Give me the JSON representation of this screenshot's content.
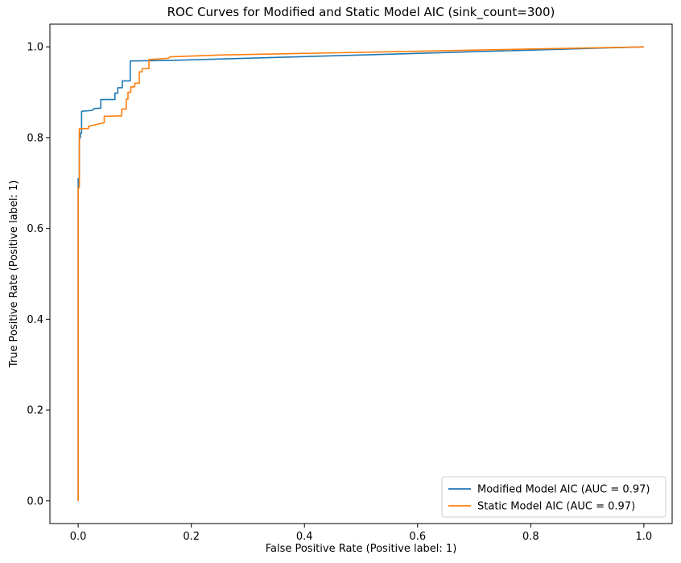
{
  "chart_data": {
    "type": "line",
    "title": "ROC Curves for Modified and Static Model AIC (sink_count=300)",
    "xlabel": "False Positive Rate (Positive label: 1)",
    "ylabel": "True Positive Rate (Positive label: 1)",
    "xlim": [
      -0.05,
      1.05
    ],
    "ylim": [
      -0.05,
      1.05
    ],
    "x_ticks": [
      0.0,
      0.2,
      0.4,
      0.6,
      0.8,
      1.0
    ],
    "y_ticks": [
      0.0,
      0.2,
      0.4,
      0.6,
      0.8,
      1.0
    ],
    "x_tick_labels": [
      "0.0",
      "0.2",
      "0.4",
      "0.6",
      "0.8",
      "1.0"
    ],
    "y_tick_labels": [
      "0.0",
      "0.2",
      "0.4",
      "0.6",
      "0.8",
      "1.0"
    ],
    "grid": false,
    "legend_position": "bottom-right",
    "series": [
      {
        "name": "Modified Model AIC (AUC = 0.97)",
        "color": "#1f77b4",
        "points": [
          [
            0.0,
            0.0
          ],
          [
            0.0,
            0.71
          ],
          [
            0.002,
            0.71
          ],
          [
            0.002,
            0.8
          ],
          [
            0.004,
            0.8
          ],
          [
            0.004,
            0.81
          ],
          [
            0.006,
            0.81
          ],
          [
            0.006,
            0.858
          ],
          [
            0.025,
            0.86
          ],
          [
            0.028,
            0.864
          ],
          [
            0.04,
            0.865
          ],
          [
            0.04,
            0.884
          ],
          [
            0.065,
            0.884
          ],
          [
            0.065,
            0.898
          ],
          [
            0.07,
            0.898
          ],
          [
            0.07,
            0.91
          ],
          [
            0.078,
            0.91
          ],
          [
            0.078,
            0.925
          ],
          [
            0.092,
            0.925
          ],
          [
            0.092,
            0.969
          ],
          [
            0.16,
            0.97
          ],
          [
            1.0,
            1.0
          ]
        ]
      },
      {
        "name": "Static Model AIC (AUC = 0.97)",
        "color": "#ff7f0e",
        "points": [
          [
            0.0,
            0.0
          ],
          [
            0.0,
            0.69
          ],
          [
            0.002,
            0.69
          ],
          [
            0.002,
            0.82
          ],
          [
            0.018,
            0.82
          ],
          [
            0.018,
            0.825
          ],
          [
            0.046,
            0.833
          ],
          [
            0.046,
            0.847
          ],
          [
            0.077,
            0.848
          ],
          [
            0.077,
            0.863
          ],
          [
            0.085,
            0.863
          ],
          [
            0.085,
            0.885
          ],
          [
            0.088,
            0.885
          ],
          [
            0.088,
            0.9
          ],
          [
            0.093,
            0.9
          ],
          [
            0.093,
            0.912
          ],
          [
            0.1,
            0.912
          ],
          [
            0.1,
            0.92
          ],
          [
            0.108,
            0.92
          ],
          [
            0.108,
            0.945
          ],
          [
            0.113,
            0.945
          ],
          [
            0.113,
            0.952
          ],
          [
            0.125,
            0.952
          ],
          [
            0.125,
            0.972
          ],
          [
            0.16,
            0.975
          ],
          [
            0.162,
            0.978
          ],
          [
            0.25,
            0.982
          ],
          [
            1.0,
            1.0
          ]
        ]
      }
    ]
  }
}
